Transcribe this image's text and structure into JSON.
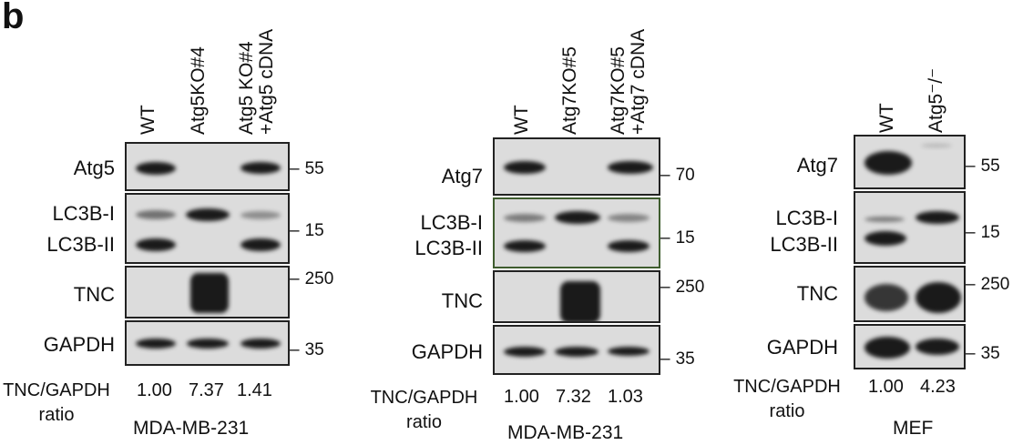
{
  "panel_label": "b",
  "panels": [
    {
      "lanes": [
        "WT",
        "Atg5KO#4",
        "Atg5 KO#4\n+Atg5 cDNA"
      ],
      "rows": [
        {
          "labels": [
            "Atg5"
          ],
          "mw": "55"
        },
        {
          "labels": [
            "LC3B-I",
            "LC3B-II"
          ],
          "mw": "15"
        },
        {
          "labels": [
            "TNC"
          ],
          "mw": "250"
        },
        {
          "labels": [
            "GAPDH"
          ],
          "mw": "35"
        }
      ],
      "ratio_label": "TNC/GAPDH\nratio",
      "ratios": [
        "1.00",
        "7.37",
        "1.41"
      ],
      "cell_line": "MDA-MB-231"
    },
    {
      "lanes": [
        "WT",
        "Atg7KO#5",
        "Atg7KO#5\n+Atg7 cDNA"
      ],
      "rows": [
        {
          "labels": [
            "Atg7"
          ],
          "mw": "70"
        },
        {
          "labels": [
            "LC3B-I",
            "LC3B-II"
          ],
          "mw": "15"
        },
        {
          "labels": [
            "TNC"
          ],
          "mw": "250"
        },
        {
          "labels": [
            "GAPDH"
          ],
          "mw": "35"
        }
      ],
      "ratio_label": "TNC/GAPDH\nratio",
      "ratios": [
        "1.00",
        "7.32",
        "1.03"
      ],
      "cell_line": "MDA-MB-231"
    },
    {
      "lanes": [
        "WT",
        "Atg5⁻/⁻"
      ],
      "rows": [
        {
          "labels": [
            "Atg7"
          ],
          "mw": "55"
        },
        {
          "labels": [
            "LC3B-I",
            "LC3B-II"
          ],
          "mw": "15"
        },
        {
          "labels": [
            "TNC"
          ],
          "mw": "250"
        },
        {
          "labels": [
            "GAPDH"
          ],
          "mw": "35"
        }
      ],
      "ratio_label": "TNC/GAPDH\nratio",
      "ratios": [
        "1.00",
        "4.23"
      ],
      "cell_line": "MEF"
    }
  ],
  "colors": {
    "band": "#1a1a1a",
    "blot_bg": "#dcdcdc",
    "frame": "#222222",
    "green_frame": "#3e5c2e"
  }
}
